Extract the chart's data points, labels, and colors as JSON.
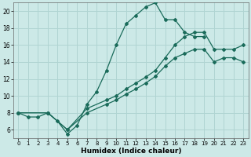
{
  "xlabel": "Humidex (Indice chaleur)",
  "ylabel": "",
  "xlim": [
    -0.5,
    23.5
  ],
  "ylim": [
    5.0,
    21.0
  ],
  "yticks": [
    6,
    8,
    10,
    12,
    14,
    16,
    18,
    20
  ],
  "xticks": [
    0,
    1,
    2,
    3,
    4,
    5,
    6,
    7,
    8,
    9,
    10,
    11,
    12,
    13,
    14,
    15,
    16,
    17,
    18,
    19,
    20,
    21,
    22,
    23
  ],
  "bg_color": "#cce9e7",
  "grid_color": "#b0d4d2",
  "line_color": "#1a6b5a",
  "line1_x": [
    0,
    1,
    2,
    3,
    4,
    5,
    6,
    7,
    8,
    9,
    10,
    11,
    12,
    13,
    14,
    15,
    16,
    17,
    18,
    19
  ],
  "line1_y": [
    8.0,
    7.5,
    7.5,
    8.0,
    7.0,
    5.5,
    6.5,
    9.0,
    10.5,
    13.0,
    16.0,
    18.5,
    19.5,
    20.5,
    21.0,
    19.0,
    19.0,
    17.5,
    17.0,
    17.0
  ],
  "line2_x": [
    0,
    3,
    5,
    7,
    9,
    10,
    11,
    12,
    13,
    14,
    15,
    16,
    17,
    18,
    19,
    20,
    21,
    22,
    23
  ],
  "line2_y": [
    8.0,
    8.0,
    6.0,
    8.5,
    9.5,
    10.0,
    10.8,
    11.5,
    12.2,
    13.0,
    14.5,
    16.0,
    17.0,
    17.5,
    17.5,
    15.5,
    15.5,
    15.5,
    16.0
  ],
  "line3_x": [
    0,
    3,
    5,
    7,
    9,
    10,
    11,
    12,
    13,
    14,
    15,
    16,
    17,
    18,
    19,
    20,
    21,
    22,
    23
  ],
  "line3_y": [
    8.0,
    8.0,
    6.0,
    8.0,
    9.0,
    9.5,
    10.2,
    10.8,
    11.5,
    12.3,
    13.5,
    14.5,
    15.0,
    15.5,
    15.5,
    14.0,
    14.5,
    14.5,
    14.0
  ]
}
